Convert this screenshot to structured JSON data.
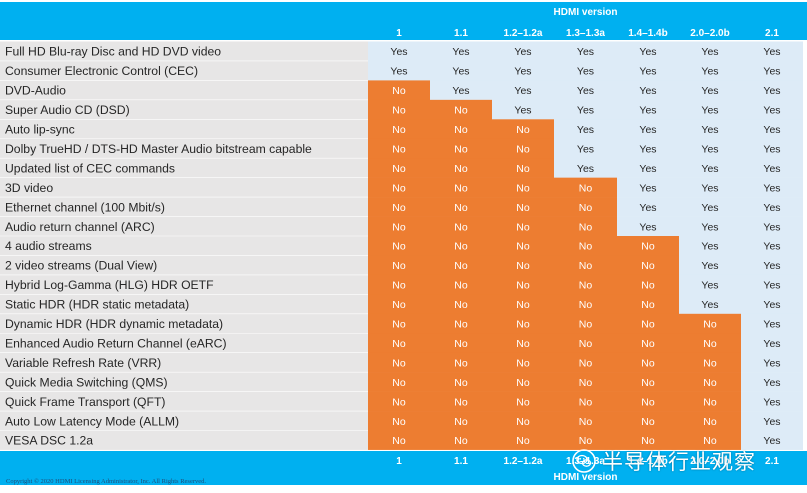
{
  "header_title": "HDMI version",
  "footer_title": "HDMI version",
  "versions": [
    "1",
    "1.1",
    "1.2–1.2a",
    "1.3–1.3a",
    "1.4–1.4b",
    "2.0–2.0b",
    "2.1"
  ],
  "cell_labels": {
    "yes": "Yes",
    "no": "No"
  },
  "features": [
    {
      "name": "Full HD Blu-ray Disc and HD DVD video",
      "support": [
        1,
        1,
        1,
        1,
        1,
        1,
        1
      ]
    },
    {
      "name": "Consumer Electronic Control (CEC)",
      "support": [
        1,
        1,
        1,
        1,
        1,
        1,
        1
      ]
    },
    {
      "name": "DVD-Audio",
      "support": [
        0,
        1,
        1,
        1,
        1,
        1,
        1
      ]
    },
    {
      "name": "Super Audio CD (DSD)",
      "support": [
        0,
        0,
        1,
        1,
        1,
        1,
        1
      ]
    },
    {
      "name": "Auto lip-sync",
      "support": [
        0,
        0,
        0,
        1,
        1,
        1,
        1
      ]
    },
    {
      "name": "Dolby TrueHD / DTS-HD Master Audio bitstream capable",
      "support": [
        0,
        0,
        0,
        1,
        1,
        1,
        1
      ]
    },
    {
      "name": "Updated list of CEC commands",
      "support": [
        0,
        0,
        0,
        1,
        1,
        1,
        1
      ]
    },
    {
      "name": "3D video",
      "support": [
        0,
        0,
        0,
        0,
        1,
        1,
        1
      ]
    },
    {
      "name": "Ethernet channel (100 Mbit/s)",
      "support": [
        0,
        0,
        0,
        0,
        1,
        1,
        1
      ]
    },
    {
      "name": "Audio return channel (ARC)",
      "support": [
        0,
        0,
        0,
        0,
        1,
        1,
        1
      ]
    },
    {
      "name": "4 audio streams",
      "support": [
        0,
        0,
        0,
        0,
        0,
        1,
        1
      ]
    },
    {
      "name": "2 video streams (Dual View)",
      "support": [
        0,
        0,
        0,
        0,
        0,
        1,
        1
      ]
    },
    {
      "name": "Hybrid Log-Gamma (HLG) HDR OETF",
      "support": [
        0,
        0,
        0,
        0,
        0,
        1,
        1
      ]
    },
    {
      "name": "Static HDR (HDR static metadata)",
      "support": [
        0,
        0,
        0,
        0,
        0,
        1,
        1
      ]
    },
    {
      "name": "Dynamic HDR (HDR dynamic metadata)",
      "support": [
        0,
        0,
        0,
        0,
        0,
        0,
        1
      ]
    },
    {
      "name": "Enhanced Audio Return Channel (eARC)",
      "support": [
        0,
        0,
        0,
        0,
        0,
        0,
        1
      ]
    },
    {
      "name": "Variable Refresh Rate (VRR)",
      "support": [
        0,
        0,
        0,
        0,
        0,
        0,
        1
      ]
    },
    {
      "name": "Quick Media Switching (QMS)",
      "support": [
        0,
        0,
        0,
        0,
        0,
        0,
        1
      ]
    },
    {
      "name": "Quick Frame Transport (QFT)",
      "support": [
        0,
        0,
        0,
        0,
        0,
        0,
        1
      ]
    },
    {
      "name": "Auto Low Latency Mode (ALLM)",
      "support": [
        0,
        0,
        0,
        0,
        0,
        0,
        1
      ]
    },
    {
      "name": "VESA DSC 1.2a",
      "support": [
        0,
        0,
        0,
        0,
        0,
        0,
        1
      ]
    }
  ],
  "copyright": "Copyright © 2020 HDMI Licensing Administrator, Inc. All Rights Reserved.",
  "watermark": {
    "text": "半导体行业观察",
    "icon": "wechat-icon"
  },
  "colors": {
    "header_blue": "#00b0f0",
    "yes_cell": "#ddebf7",
    "no_cell": "#ed7d31",
    "row_label": "#e7e6e6",
    "yes_text": "#262626",
    "no_text": "#ffffff",
    "label_text": "#262626"
  }
}
